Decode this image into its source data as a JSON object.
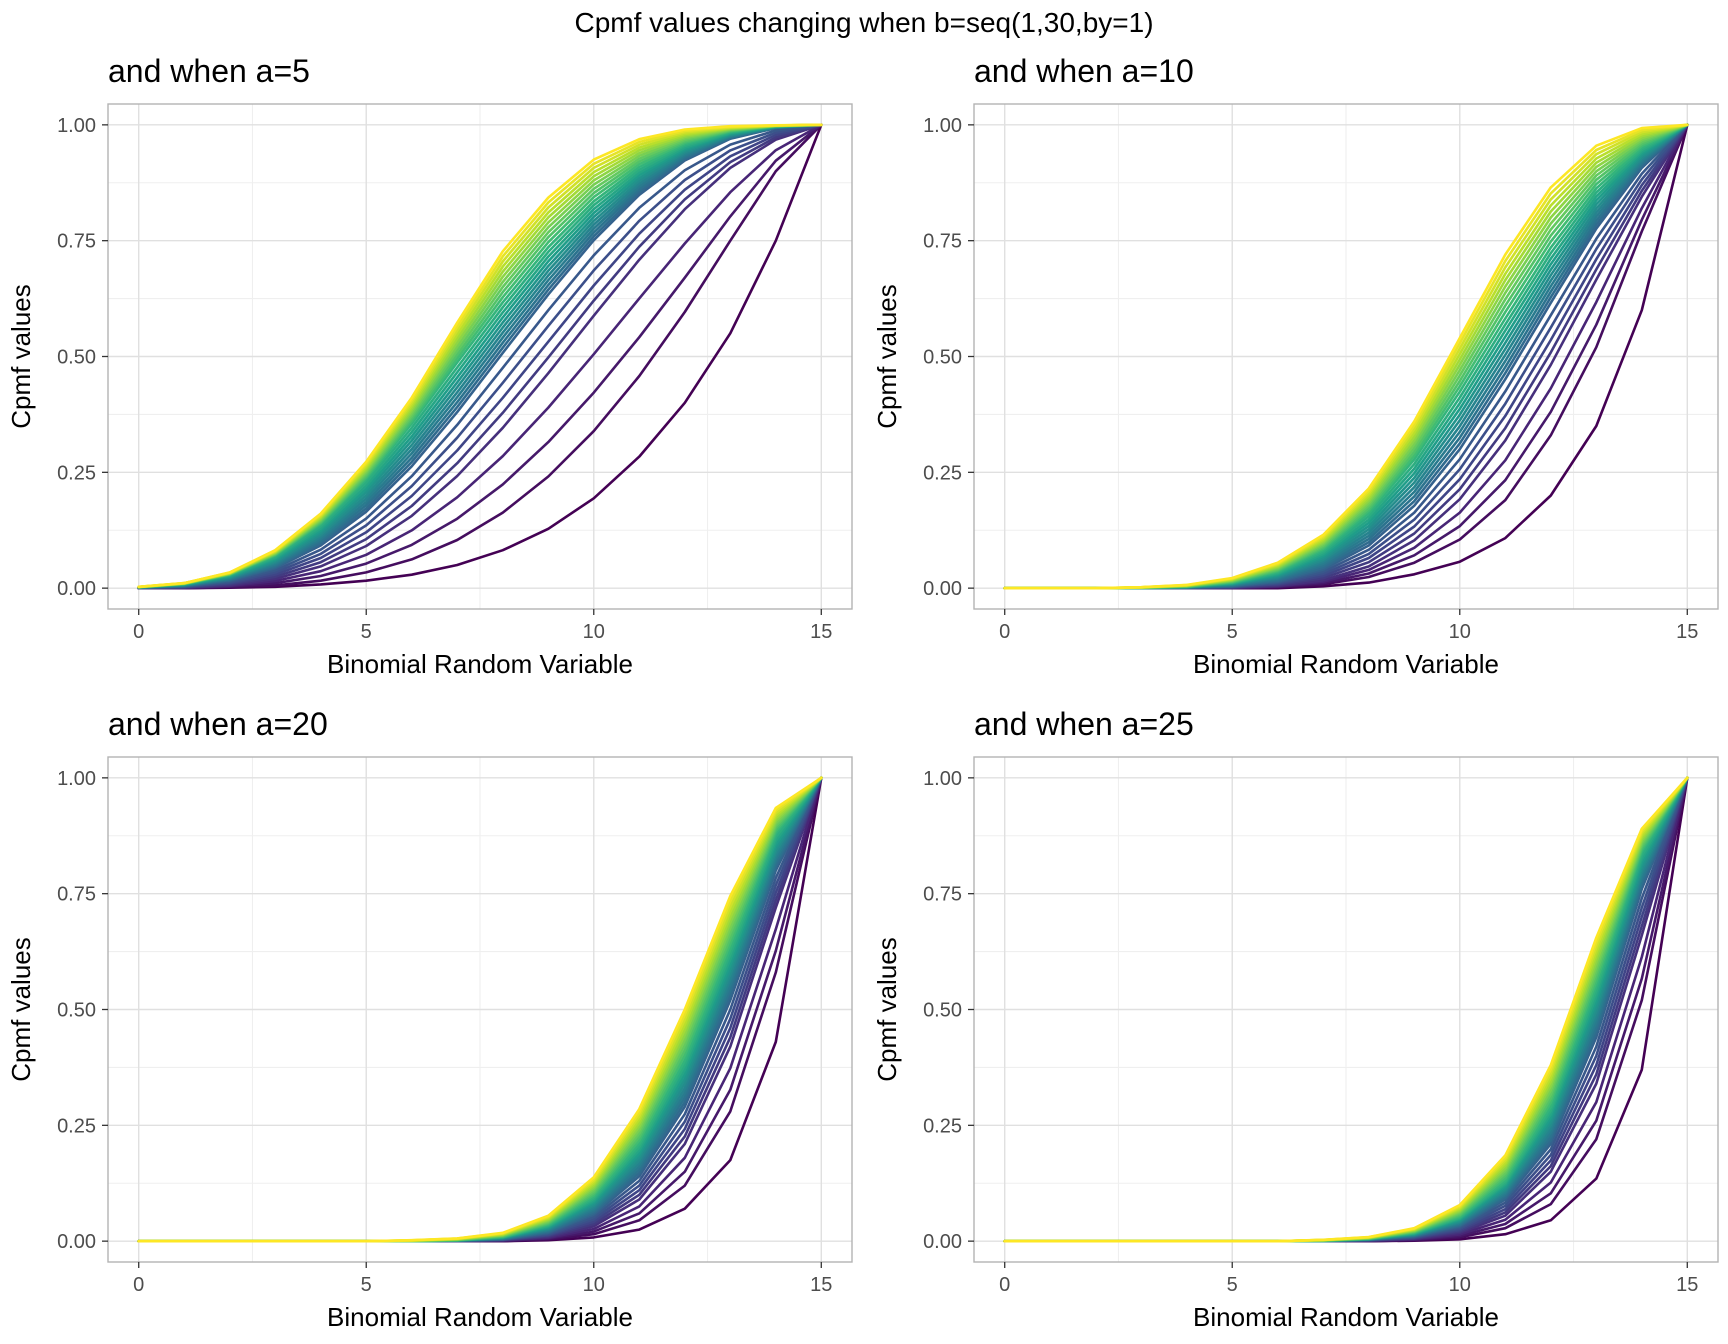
{
  "figure": {
    "title": "Cpmf values changing when b=seq(1,30,by=1)"
  },
  "colors": {
    "grid_major": "#e0e0e0",
    "grid_minor": "#efefef",
    "panel_border": "#b3b3b3",
    "palette": "viridis",
    "viridis_stops": [
      "#440154",
      "#482878",
      "#3e4a89",
      "#31688e",
      "#26828e",
      "#1f9e89",
      "#35b779",
      "#6dcd59",
      "#b4de2c",
      "#fde725"
    ]
  },
  "chart_data": [
    {
      "type": "line",
      "title": "and when a=5",
      "xlabel": "Binomial Random Variable",
      "ylabel": "Cpmf values",
      "xlim": [
        0,
        15
      ],
      "ylim": [
        0,
        1
      ],
      "xticks": [
        0,
        5,
        10,
        15
      ],
      "xtick_labels": [
        "0",
        "5",
        "10",
        "15"
      ],
      "yticks": [
        0,
        0.25,
        0.5,
        0.75,
        1
      ],
      "ytick_labels": [
        "0.00",
        "0.25",
        "0.50",
        "0.75",
        "1.00"
      ],
      "grid": true,
      "series_param": {
        "b_from": 1,
        "b_to": 30,
        "b_by": 1
      },
      "x": [
        0,
        1,
        2,
        3,
        4,
        5,
        6,
        7,
        8,
        9,
        10,
        11,
        12,
        13,
        14,
        15
      ],
      "series": [
        {
          "b": 1,
          "values": [
            0.0,
            0.0,
            0.001,
            0.003,
            0.008,
            0.016,
            0.029,
            0.05,
            0.082,
            0.128,
            0.194,
            0.284,
            0.4,
            0.55,
            0.75,
            1.0
          ]
        },
        {
          "b": 2,
          "values": [
            0.0,
            0.0,
            0.002,
            0.006,
            0.016,
            0.034,
            0.062,
            0.104,
            0.163,
            0.241,
            0.339,
            0.458,
            0.596,
            0.75,
            0.9,
            1.0
          ]
        },
        {
          "b": 5,
          "values": [
            0.0,
            0.001,
            0.006,
            0.02,
            0.047,
            0.091,
            0.156,
            0.242,
            0.346,
            0.464,
            0.588,
            0.709,
            0.818,
            0.907,
            0.968,
            1.0
          ]
        },
        {
          "b": 10,
          "values": [
            0.001,
            0.004,
            0.016,
            0.043,
            0.092,
            0.165,
            0.263,
            0.38,
            0.508,
            0.634,
            0.751,
            0.849,
            0.923,
            0.97,
            0.993,
            1.0
          ]
        },
        {
          "b": 20,
          "values": [
            0.002,
            0.009,
            0.029,
            0.07,
            0.138,
            0.235,
            0.355,
            0.487,
            0.617,
            0.736,
            0.835,
            0.909,
            0.958,
            0.985,
            0.997,
            1.0
          ]
        },
        {
          "b": 30,
          "values": [
            0.003,
            0.011,
            0.034,
            0.082,
            0.161,
            0.273,
            0.411,
            0.573,
            0.727,
            0.843,
            0.925,
            0.969,
            0.99,
            0.997,
            0.999,
            1.0
          ]
        }
      ]
    },
    {
      "type": "line",
      "title": "and when a=10",
      "xlabel": "Binomial Random Variable",
      "ylabel": "Cpmf values",
      "xlim": [
        0,
        15
      ],
      "ylim": [
        0,
        1
      ],
      "xticks": [
        0,
        5,
        10,
        15
      ],
      "xtick_labels": [
        "0",
        "5",
        "10",
        "15"
      ],
      "yticks": [
        0,
        0.25,
        0.5,
        0.75,
        1
      ],
      "ytick_labels": [
        "0.00",
        "0.25",
        "0.50",
        "0.75",
        "1.00"
      ],
      "grid": true,
      "series_param": {
        "b_from": 1,
        "b_to": 30,
        "b_by": 1
      },
      "x": [
        0,
        1,
        2,
        3,
        4,
        5,
        6,
        7,
        8,
        9,
        10,
        11,
        12,
        13,
        14,
        15
      ],
      "series": [
        {
          "b": 1,
          "values": [
            0.0,
            0.0,
            0.0,
            0.0,
            0.0,
            0.0,
            0.0,
            0.004,
            0.012,
            0.03,
            0.057,
            0.108,
            0.2,
            0.35,
            0.6,
            1.0
          ]
        },
        {
          "b": 2,
          "values": [
            0.0,
            0.0,
            0.0,
            0.0,
            0.0,
            0.0,
            0.002,
            0.008,
            0.024,
            0.055,
            0.105,
            0.19,
            0.33,
            0.52,
            0.77,
            1.0
          ]
        },
        {
          "b": 5,
          "values": [
            0.0,
            0.0,
            0.0,
            0.0,
            0.0,
            0.001,
            0.005,
            0.017,
            0.047,
            0.103,
            0.192,
            0.319,
            0.482,
            0.666,
            0.845,
            1.0
          ]
        },
        {
          "b": 10,
          "values": [
            0.0,
            0.0,
            0.0,
            0.0,
            0.001,
            0.004,
            0.014,
            0.04,
            0.092,
            0.178,
            0.3,
            0.451,
            0.616,
            0.776,
            0.907,
            1.0
          ]
        },
        {
          "b": 20,
          "values": [
            0.0,
            0.0,
            0.0,
            0.001,
            0.003,
            0.012,
            0.035,
            0.082,
            0.162,
            0.278,
            0.424,
            0.582,
            0.735,
            0.863,
            0.95,
            1.0
          ]
        },
        {
          "b": 30,
          "values": [
            0.0,
            0.0,
            0.0,
            0.002,
            0.007,
            0.022,
            0.055,
            0.115,
            0.215,
            0.36,
            0.54,
            0.72,
            0.865,
            0.955,
            0.993,
            1.0
          ]
        }
      ]
    },
    {
      "type": "line",
      "title": "and when a=20",
      "xlabel": "Binomial Random Variable",
      "ylabel": "Cpmf values",
      "xlim": [
        0,
        15
      ],
      "ylim": [
        0,
        1
      ],
      "xticks": [
        0,
        5,
        10,
        15
      ],
      "xtick_labels": [
        "0",
        "5",
        "10",
        "15"
      ],
      "yticks": [
        0,
        0.25,
        0.5,
        0.75,
        1
      ],
      "ytick_labels": [
        "0.00",
        "0.25",
        "0.50",
        "0.75",
        "1.00"
      ],
      "grid": true,
      "series_param": {
        "b_from": 1,
        "b_to": 30,
        "b_by": 1
      },
      "x": [
        0,
        1,
        2,
        3,
        4,
        5,
        6,
        7,
        8,
        9,
        10,
        11,
        12,
        13,
        14,
        15
      ],
      "series": [
        {
          "b": 1,
          "values": [
            0.0,
            0.0,
            0.0,
            0.0,
            0.0,
            0.0,
            0.0,
            0.0,
            0.0,
            0.002,
            0.008,
            0.025,
            0.07,
            0.175,
            0.43,
            1.0
          ]
        },
        {
          "b": 2,
          "values": [
            0.0,
            0.0,
            0.0,
            0.0,
            0.0,
            0.0,
            0.0,
            0.0,
            0.0,
            0.004,
            0.015,
            0.045,
            0.12,
            0.28,
            0.58,
            1.0
          ]
        },
        {
          "b": 5,
          "values": [
            0.0,
            0.0,
            0.0,
            0.0,
            0.0,
            0.0,
            0.0,
            0.0,
            0.002,
            0.009,
            0.032,
            0.09,
            0.21,
            0.42,
            0.72,
            1.0
          ]
        },
        {
          "b": 10,
          "values": [
            0.0,
            0.0,
            0.0,
            0.0,
            0.0,
            0.0,
            0.0,
            0.001,
            0.004,
            0.018,
            0.057,
            0.14,
            0.29,
            0.52,
            0.8,
            1.0
          ]
        },
        {
          "b": 20,
          "values": [
            0.0,
            0.0,
            0.0,
            0.0,
            0.0,
            0.0,
            0.0,
            0.002,
            0.009,
            0.035,
            0.095,
            0.21,
            0.39,
            0.63,
            0.88,
            1.0
          ]
        },
        {
          "b": 30,
          "values": [
            0.0,
            0.0,
            0.0,
            0.0,
            0.0,
            0.0,
            0.002,
            0.006,
            0.018,
            0.055,
            0.138,
            0.285,
            0.5,
            0.745,
            0.935,
            1.0
          ]
        }
      ]
    },
    {
      "type": "line",
      "title": "and when a=25",
      "xlabel": "Binomial Random Variable",
      "ylabel": "Cpmf values",
      "xlim": [
        0,
        15
      ],
      "ylim": [
        0,
        1
      ],
      "xticks": [
        0,
        5,
        10,
        15
      ],
      "xtick_labels": [
        "0",
        "5",
        "10",
        "15"
      ],
      "yticks": [
        0,
        0.25,
        0.5,
        0.75,
        1
      ],
      "ytick_labels": [
        "0.00",
        "0.25",
        "0.50",
        "0.75",
        "1.00"
      ],
      "grid": true,
      "series_param": {
        "b_from": 1,
        "b_to": 30,
        "b_by": 1
      },
      "x": [
        0,
        1,
        2,
        3,
        4,
        5,
        6,
        7,
        8,
        9,
        10,
        11,
        12,
        13,
        14,
        15
      ],
      "series": [
        {
          "b": 1,
          "values": [
            0.0,
            0.0,
            0.0,
            0.0,
            0.0,
            0.0,
            0.0,
            0.0,
            0.0,
            0.001,
            0.004,
            0.015,
            0.045,
            0.135,
            0.37,
            1.0
          ]
        },
        {
          "b": 2,
          "values": [
            0.0,
            0.0,
            0.0,
            0.0,
            0.0,
            0.0,
            0.0,
            0.0,
            0.0,
            0.002,
            0.008,
            0.028,
            0.08,
            0.22,
            0.52,
            1.0
          ]
        },
        {
          "b": 5,
          "values": [
            0.0,
            0.0,
            0.0,
            0.0,
            0.0,
            0.0,
            0.0,
            0.0,
            0.001,
            0.005,
            0.018,
            0.055,
            0.15,
            0.34,
            0.66,
            1.0
          ]
        },
        {
          "b": 10,
          "values": [
            0.0,
            0.0,
            0.0,
            0.0,
            0.0,
            0.0,
            0.0,
            0.0,
            0.003,
            0.01,
            0.032,
            0.09,
            0.21,
            0.44,
            0.76,
            1.0
          ]
        },
        {
          "b": 20,
          "values": [
            0.0,
            0.0,
            0.0,
            0.0,
            0.0,
            0.0,
            0.0,
            0.001,
            0.005,
            0.018,
            0.052,
            0.13,
            0.29,
            0.55,
            0.84,
            1.0
          ]
        },
        {
          "b": 30,
          "values": [
            0.0,
            0.0,
            0.0,
            0.0,
            0.0,
            0.0,
            0.0,
            0.003,
            0.009,
            0.028,
            0.078,
            0.185,
            0.38,
            0.655,
            0.89,
            1.0
          ]
        }
      ]
    }
  ]
}
